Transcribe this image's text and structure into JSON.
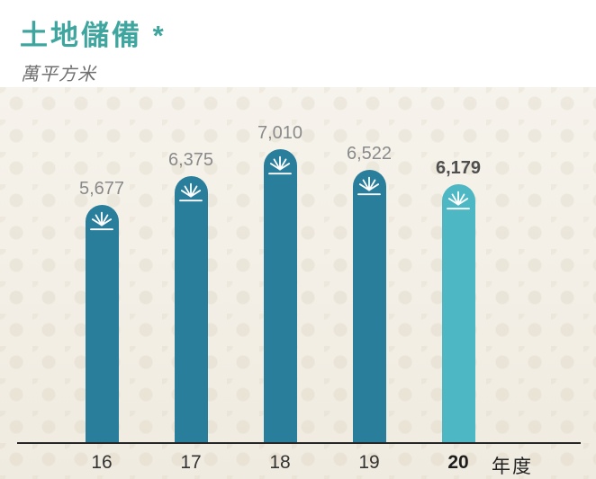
{
  "header": {
    "title": "土地儲備 *",
    "subtitle": "萬平方米"
  },
  "chart_data": {
    "type": "bar",
    "title": "土地儲備 *",
    "unit_label": "萬平方米",
    "xlabel": "年度",
    "categories": [
      "16",
      "17",
      "18",
      "19",
      "20"
    ],
    "values": [
      5677,
      6375,
      7010,
      6522,
      6179
    ],
    "value_labels": [
      "5,677",
      "6,375",
      "7,010",
      "6,522",
      "6,179"
    ],
    "highlight_index": 4,
    "ylim": [
      0,
      7500
    ],
    "grid": false,
    "legend": false,
    "colors": {
      "bar": "#287e9b",
      "bar_highlight": "#4db8c4",
      "value_label": "#8a8a8a",
      "value_label_highlight": "#4f4f4f",
      "title": "#3fa69f",
      "axis_line": "#262626",
      "background": "#f2eee3"
    },
    "bar_top_icon": "fountain-over-ground-icon"
  }
}
